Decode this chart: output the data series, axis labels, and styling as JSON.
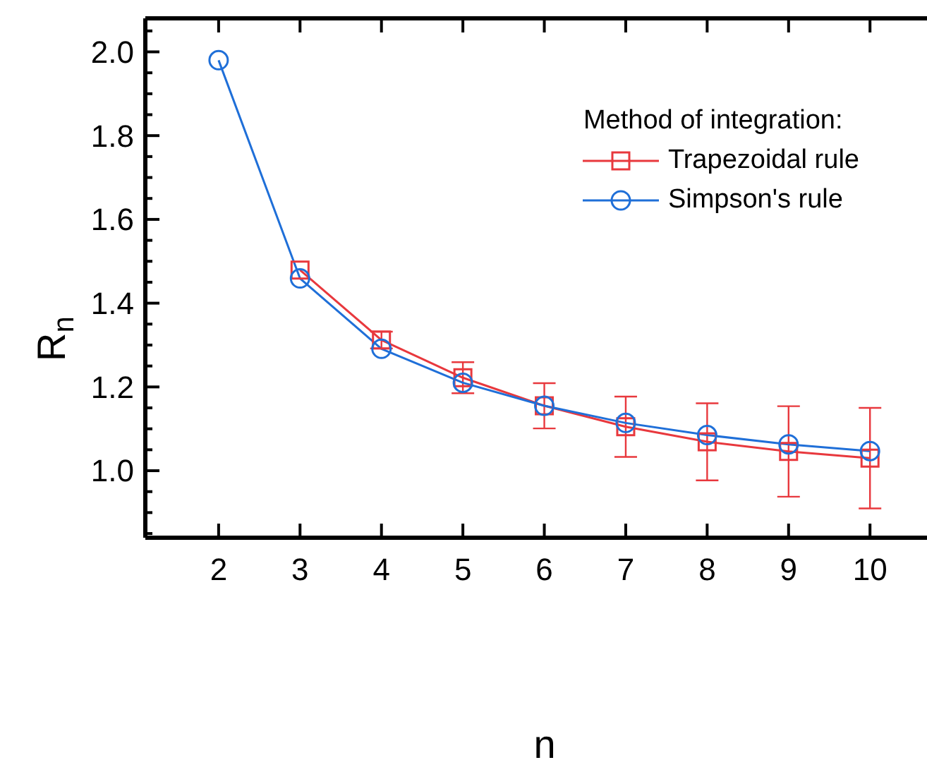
{
  "chart_data": {
    "type": "line",
    "xlabel": "n",
    "ylabel": "R$_{n}$",
    "legend_title": "Method of integration:",
    "legend": "top right",
    "x": [
      2,
      3,
      4,
      5,
      6,
      7,
      8,
      9,
      10
    ],
    "xlim": [
      1.1,
      10.7
    ],
    "xticks": [
      2,
      3,
      4,
      5,
      6,
      7,
      8,
      9,
      10
    ],
    "ylim": [
      0.84,
      2.08
    ],
    "yticks": [
      {
        "value": 0.85,
        "label": null
      },
      {
        "value": 0.9,
        "label": null
      },
      {
        "value": 0.95,
        "label": null
      },
      "1.0",
      {
        "value": 1.05,
        "label": null
      },
      {
        "value": 1.1,
        "label": null
      },
      {
        "value": 1.15,
        "label": null
      },
      {
        "value": 1.2,
        "label": "1.2"
      },
      {
        "value": 1.25,
        "label": null
      },
      {
        "value": 1.3,
        "label": null
      },
      {
        "value": 1.35,
        "label": null
      },
      {
        "value": 1.4,
        "label": "1.4"
      },
      {
        "value": 1.45,
        "label": null
      },
      {
        "value": 1.5,
        "label": null
      },
      {
        "value": 1.55,
        "label": null
      },
      {
        "value": 1.6,
        "label": "1.6"
      },
      {
        "value": 1.65,
        "label": null
      },
      {
        "value": 1.7,
        "label": null
      },
      {
        "value": 1.75,
        "label": null
      },
      {
        "value": 1.8,
        "label": "1.8"
      },
      {
        "value": 1.85,
        "label": null
      },
      {
        "value": 1.9,
        "label": null
      },
      {
        "value": 1.95,
        "label": null
      },
      {
        "value": 2.0,
        "label": "2.0"
      },
      {
        "value": 2.05,
        "label": null
      }
    ],
    "line_style": "solid",
    "series": [
      {
        "name": "Trapezoidal rule",
        "color": "#e8383d",
        "marker": "square",
        "values": [
          null,
          1.479,
          1.312,
          1.222,
          1.155,
          1.105,
          1.069,
          1.046,
          1.03
        ],
        "errors": [
          null,
          null,
          0.02,
          0.037,
          0.054,
          0.072,
          0.092,
          0.108,
          0.12
        ]
      },
      {
        "name": "Simpson's rule",
        "color": "#1f6fd8",
        "marker": "circle",
        "values": [
          1.98,
          1.459,
          1.291,
          1.21,
          1.155,
          1.114,
          1.085,
          1.063,
          1.047
        ]
      }
    ]
  }
}
